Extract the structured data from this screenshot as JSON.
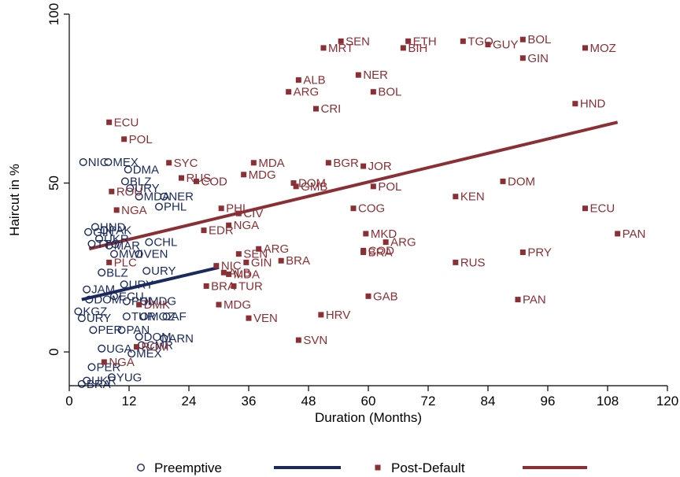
{
  "chart_data": {
    "type": "scatter",
    "xlabel": "Duration (Months)",
    "ylabel": "Haircut in %",
    "xlim": [
      0,
      120
    ],
    "ylim": [
      -10,
      100
    ],
    "xticks": [
      0,
      12,
      24,
      36,
      48,
      60,
      72,
      84,
      96,
      108,
      120
    ],
    "yticks": [
      0,
      50,
      100
    ],
    "grid": false,
    "legend_position": "bottom",
    "legend": [
      {
        "label": "Preemptive",
        "kind": "marker",
        "series": "preemptive"
      },
      {
        "label": "",
        "kind": "line",
        "series": "preemptive_fit"
      },
      {
        "label": "Post-Default",
        "kind": "marker",
        "series": "post_default"
      },
      {
        "label": "",
        "kind": "line",
        "series": "post_default_fit"
      }
    ],
    "series": [
      {
        "id": "preemptive",
        "marker": "hollow-circle",
        "color": "#1a2a5e",
        "points": [
          {
            "x": 2.8,
            "y": 56.2,
            "label": "NIC"
          },
          {
            "x": 7.8,
            "y": 56.2,
            "label": "MEX"
          },
          {
            "x": 11.8,
            "y": 54.0,
            "label": "DMA"
          },
          {
            "x": 11.2,
            "y": 50.5,
            "label": "BLZ"
          },
          {
            "x": 12.2,
            "y": 48.5,
            "label": "URY"
          },
          {
            "x": 14.0,
            "y": 46.0,
            "label": "MDA"
          },
          {
            "x": 19.0,
            "y": 46.0,
            "label": "NER"
          },
          {
            "x": 5.2,
            "y": 37.0,
            "label": "HND"
          },
          {
            "x": 3.8,
            "y": 35.5,
            "label": "GIN"
          },
          {
            "x": 7.0,
            "y": 36.0,
            "label": "PAK"
          },
          {
            "x": 18.0,
            "y": 43.0,
            "label": "PHL"
          },
          {
            "x": 6.0,
            "y": 33.5,
            "label": "UKR"
          },
          {
            "x": 8.0,
            "y": 31.5,
            "label": "MAR"
          },
          {
            "x": 4.5,
            "y": 32.0,
            "label": "TTO"
          },
          {
            "x": 16.0,
            "y": 32.5,
            "label": "CHL"
          },
          {
            "x": 9.0,
            "y": 29.0,
            "label": "MWI"
          },
          {
            "x": 14.0,
            "y": 29.0,
            "label": "VEN"
          },
          {
            "x": 6.5,
            "y": 23.5,
            "label": "BLZ"
          },
          {
            "x": 15.5,
            "y": 24.0,
            "label": "URY"
          },
          {
            "x": 11.0,
            "y": 20.0,
            "label": "URY"
          },
          {
            "x": 3.5,
            "y": 18.5,
            "label": "JAM"
          },
          {
            "x": 4.0,
            "y": 15.5,
            "label": "DOM"
          },
          {
            "x": 9.0,
            "y": 16.5,
            "label": "ECU"
          },
          {
            "x": 11.5,
            "y": 15.0,
            "label": "PHL"
          },
          {
            "x": 15.0,
            "y": 15.0,
            "label": "MDG"
          },
          {
            "x": 1.8,
            "y": 12.0,
            "label": "KGZ"
          },
          {
            "x": 2.5,
            "y": 10.0,
            "label": "URY"
          },
          {
            "x": 11.5,
            "y": 10.5,
            "label": "TUR"
          },
          {
            "x": 15.0,
            "y": 10.5,
            "label": "MOZ"
          },
          {
            "x": 19.5,
            "y": 10.5,
            "label": "AF"
          },
          {
            "x": 4.8,
            "y": 6.5,
            "label": "PER"
          },
          {
            "x": 10.5,
            "y": 6.5,
            "label": "PAN"
          },
          {
            "x": 14.0,
            "y": 4.5,
            "label": "DOM"
          },
          {
            "x": 19.0,
            "y": 4.0,
            "label": "ARN"
          },
          {
            "x": 6.5,
            "y": 1.0,
            "label": "UGA"
          },
          {
            "x": 14.5,
            "y": 2.0,
            "label": "CMR"
          },
          {
            "x": 12.5,
            "y": -0.5,
            "label": "MEX"
          },
          {
            "x": 4.5,
            "y": -4.5,
            "label": "PER"
          },
          {
            "x": 8.5,
            "y": -7.5,
            "label": "YUG"
          },
          {
            "x": 3.5,
            "y": -8.5,
            "label": "UKR"
          },
          {
            "x": 2.5,
            "y": -9.5,
            "label": "BRA"
          }
        ]
      },
      {
        "id": "post_default",
        "marker": "filled-square",
        "color": "#8b2f34",
        "points": [
          {
            "x": 54.5,
            "y": 92.0,
            "label": "SEN"
          },
          {
            "x": 51.0,
            "y": 90.0,
            "label": "MRT"
          },
          {
            "x": 68.0,
            "y": 92.0,
            "label": "ETH"
          },
          {
            "x": 67.0,
            "y": 90.0,
            "label": "BIH"
          },
          {
            "x": 79.0,
            "y": 92.0,
            "label": "TGO"
          },
          {
            "x": 84.0,
            "y": 91.0,
            "label": "GUY"
          },
          {
            "x": 91.0,
            "y": 92.5,
            "label": "BOL"
          },
          {
            "x": 103.5,
            "y": 90.0,
            "label": "MOZ"
          },
          {
            "x": 91.0,
            "y": 87.0,
            "label": "GIN"
          },
          {
            "x": 58.0,
            "y": 82.0,
            "label": "NER"
          },
          {
            "x": 46.0,
            "y": 80.5,
            "label": "ALB"
          },
          {
            "x": 44.0,
            "y": 77.0,
            "label": "ARG"
          },
          {
            "x": 61.0,
            "y": 77.0,
            "label": "BOL"
          },
          {
            "x": 49.5,
            "y": 72.0,
            "label": "CRI"
          },
          {
            "x": 101.5,
            "y": 73.5,
            "label": "HND"
          },
          {
            "x": 8.0,
            "y": 68.0,
            "label": "ECU"
          },
          {
            "x": 11.0,
            "y": 63.0,
            "label": "POL"
          },
          {
            "x": 20.0,
            "y": 56.0,
            "label": "SYC"
          },
          {
            "x": 37.0,
            "y": 56.0,
            "label": "MDA"
          },
          {
            "x": 52.0,
            "y": 56.0,
            "label": "BGR"
          },
          {
            "x": 59.0,
            "y": 55.0,
            "label": "JOR"
          },
          {
            "x": 35.0,
            "y": 52.5,
            "label": "MDG"
          },
          {
            "x": 22.5,
            "y": 51.5,
            "label": "RUS"
          },
          {
            "x": 25.5,
            "y": 50.5,
            "label": "COD"
          },
          {
            "x": 45.0,
            "y": 50.0,
            "label": "DOM"
          },
          {
            "x": 45.5,
            "y": 49.0,
            "label": "GMB"
          },
          {
            "x": 61.0,
            "y": 49.0,
            "label": "POL"
          },
          {
            "x": 87.0,
            "y": 50.5,
            "label": "DOM"
          },
          {
            "x": 77.5,
            "y": 46.0,
            "label": "KEN"
          },
          {
            "x": 57.0,
            "y": 42.5,
            "label": "COG"
          },
          {
            "x": 103.5,
            "y": 42.5,
            "label": "ECU"
          },
          {
            "x": 30.5,
            "y": 42.5,
            "label": "PHL"
          },
          {
            "x": 34.0,
            "y": 41.0,
            "label": "CIV"
          },
          {
            "x": 32.0,
            "y": 37.5,
            "label": "NGA"
          },
          {
            "x": 27.0,
            "y": 36.0,
            "label": "EDR"
          },
          {
            "x": 110.0,
            "y": 35.0,
            "label": "PAN"
          },
          {
            "x": 59.5,
            "y": 35.0,
            "label": "MKD"
          },
          {
            "x": 63.5,
            "y": 32.5,
            "label": "ARG"
          },
          {
            "x": 59.0,
            "y": 30.0,
            "label": "COD"
          },
          {
            "x": 59.0,
            "y": 29.5,
            "label": "BRA"
          },
          {
            "x": 91.0,
            "y": 29.5,
            "label": "PRY"
          },
          {
            "x": 38.0,
            "y": 30.5,
            "label": "ARG"
          },
          {
            "x": 34.0,
            "y": 29.0,
            "label": "SEN"
          },
          {
            "x": 35.5,
            "y": 26.5,
            "label": "GIN"
          },
          {
            "x": 42.5,
            "y": 27.0,
            "label": "BRA"
          },
          {
            "x": 77.5,
            "y": 26.5,
            "label": "RUS"
          },
          {
            "x": 29.5,
            "y": 25.5,
            "label": "NIC"
          },
          {
            "x": 31.0,
            "y": 23.5,
            "label": "ALB"
          },
          {
            "x": 32.0,
            "y": 23.0,
            "label": "MDA"
          },
          {
            "x": 33.0,
            "y": 19.5,
            "label": "TUR"
          },
          {
            "x": 27.5,
            "y": 19.5,
            "label": "BRA"
          },
          {
            "x": 60.0,
            "y": 16.5,
            "label": "GAB"
          },
          {
            "x": 90.0,
            "y": 15.5,
            "label": "PAN"
          },
          {
            "x": 30.0,
            "y": 14.0,
            "label": "MDG"
          },
          {
            "x": 36.0,
            "y": 10.0,
            "label": "VEN"
          },
          {
            "x": 50.5,
            "y": 11.0,
            "label": "HRV"
          },
          {
            "x": 46.0,
            "y": 3.5,
            "label": "SVN"
          },
          {
            "x": 7.0,
            "y": -3.0,
            "label": "NGA"
          },
          {
            "x": 8.5,
            "y": 47.5,
            "label": "ROU"
          },
          {
            "x": 9.5,
            "y": 42.0,
            "label": "NGA"
          },
          {
            "x": 8.0,
            "y": 26.5,
            "label": "PLC"
          },
          {
            "x": 14.0,
            "y": 14.0,
            "label": "DMK"
          },
          {
            "x": 13.5,
            "y": 1.5,
            "label": "ROM"
          }
        ]
      }
    ],
    "fit_lines": [
      {
        "series": "preemptive_fit",
        "color": "#1a2a5e",
        "x": [
          2.5,
          30.0
        ],
        "y": [
          15.5,
          25.0
        ]
      },
      {
        "series": "post_default_fit",
        "color": "#8b2f34",
        "x": [
          4.0,
          110.0
        ],
        "y": [
          30.5,
          68.0
        ]
      }
    ]
  }
}
